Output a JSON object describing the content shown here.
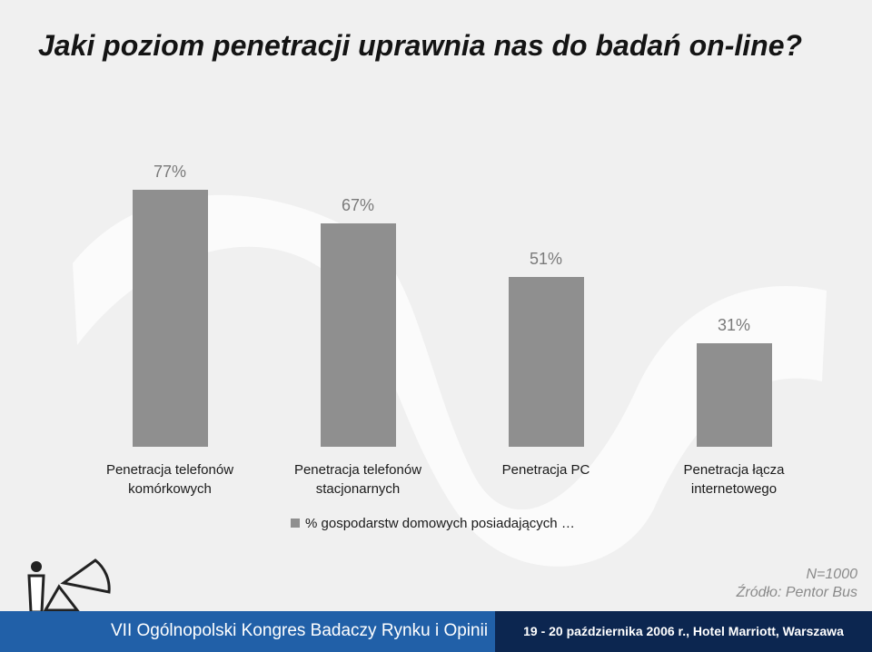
{
  "chart_data": {
    "type": "bar",
    "title": "Jaki poziom penetracji uprawnia nas do badań on-line?",
    "categories": [
      "Penetracja telefonów komórkowych",
      "Penetracja telefonów stacjonarnych",
      "Penetracja PC",
      "Penetracja łącza internetowego"
    ],
    "series": [
      {
        "name": "% gospodarstw domowych posiadających …",
        "color": "#8f8f8f",
        "values": [
          77,
          67,
          51,
          31
        ],
        "value_labels": [
          "77%",
          "67%",
          "51%",
          "31%"
        ]
      }
    ]
  },
  "note": {
    "sample": "N=1000",
    "source": "Źródło: Pentor Bus"
  },
  "footer": {
    "event": "VII Ogólnopolski Kongres Badaczy Rynku i Opinii",
    "details": "19 - 20 października 2006 r., Hotel Marriott, Warszawa"
  }
}
